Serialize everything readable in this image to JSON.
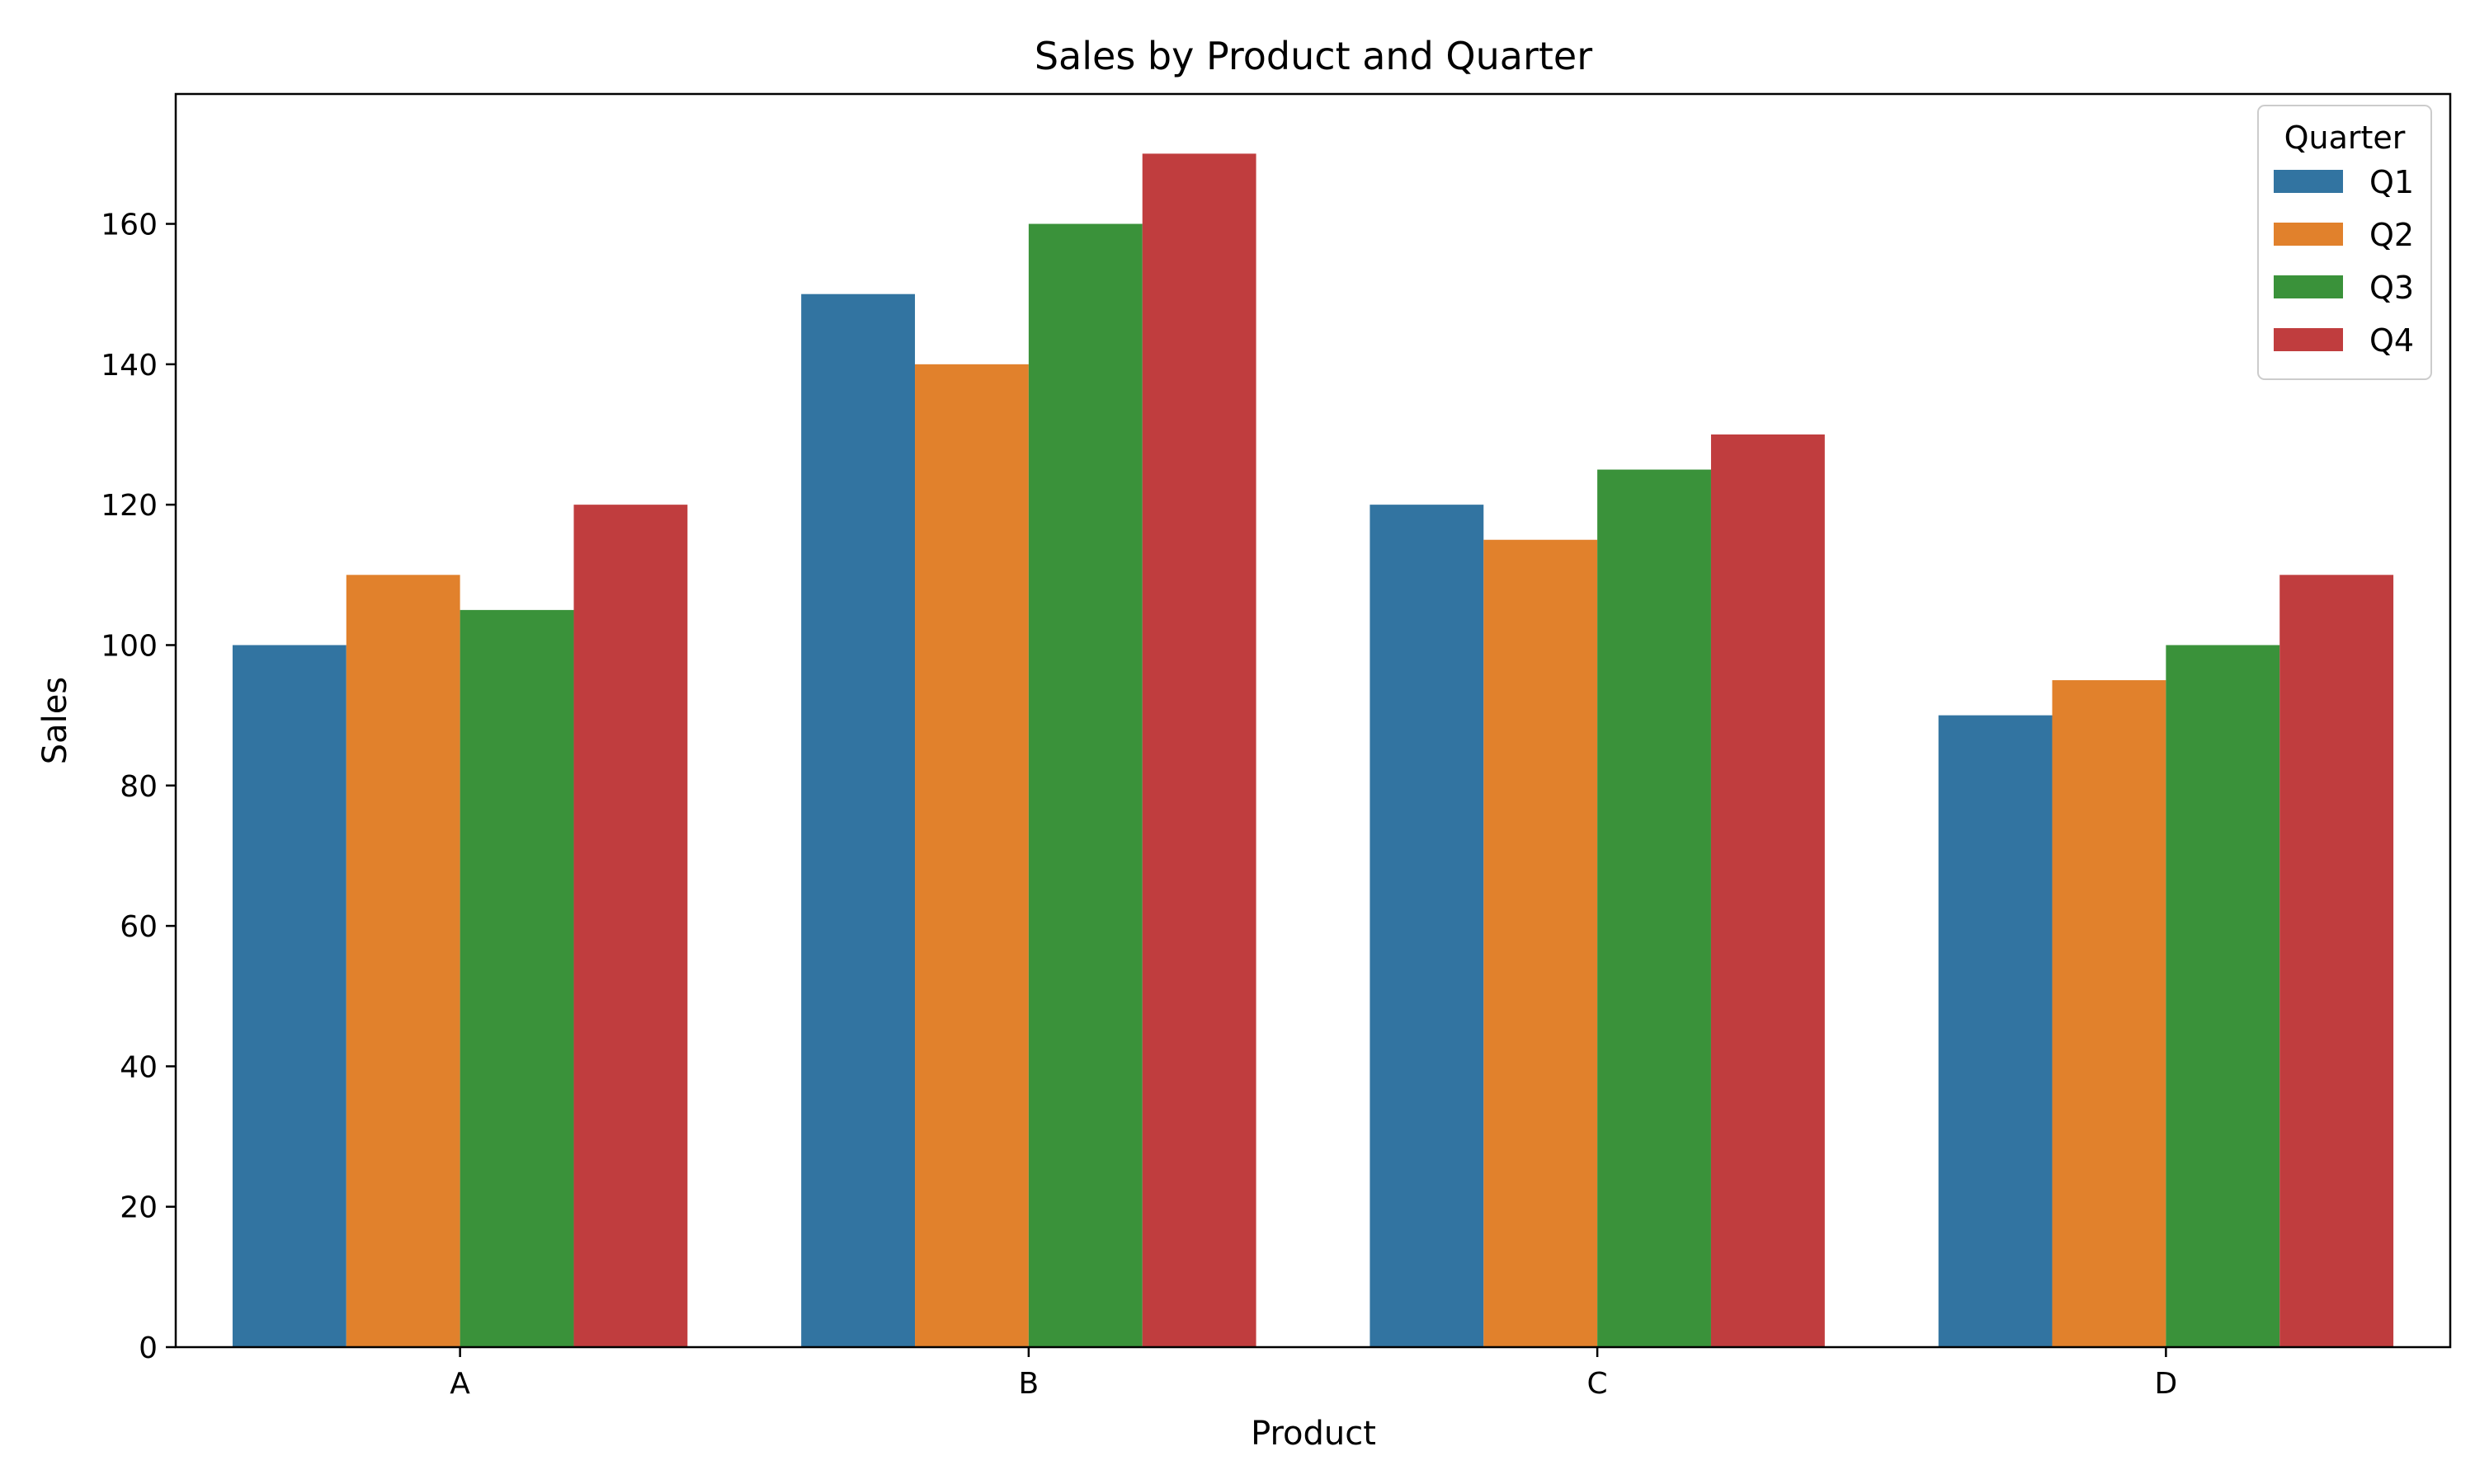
{
  "chart_data": {
    "type": "bar",
    "title": "Sales by Product and Quarter",
    "xlabel": "Product",
    "ylabel": "Sales",
    "categories": [
      "A",
      "B",
      "C",
      "D"
    ],
    "series": [
      {
        "name": "Q1",
        "color": "#3274a1",
        "values": [
          100,
          150,
          120,
          90
        ]
      },
      {
        "name": "Q2",
        "color": "#e1812c",
        "values": [
          110,
          140,
          115,
          95
        ]
      },
      {
        "name": "Q3",
        "color": "#3a923a",
        "values": [
          105,
          160,
          125,
          100
        ]
      },
      {
        "name": "Q4",
        "color": "#c03d3e",
        "values": [
          120,
          170,
          130,
          110
        ]
      }
    ],
    "ylim": [
      0,
      178.5
    ],
    "yticks": [
      0,
      20,
      40,
      60,
      80,
      100,
      120,
      140,
      160
    ],
    "legend": {
      "title": "Quarter",
      "placement": "top-right"
    },
    "grid": false
  }
}
